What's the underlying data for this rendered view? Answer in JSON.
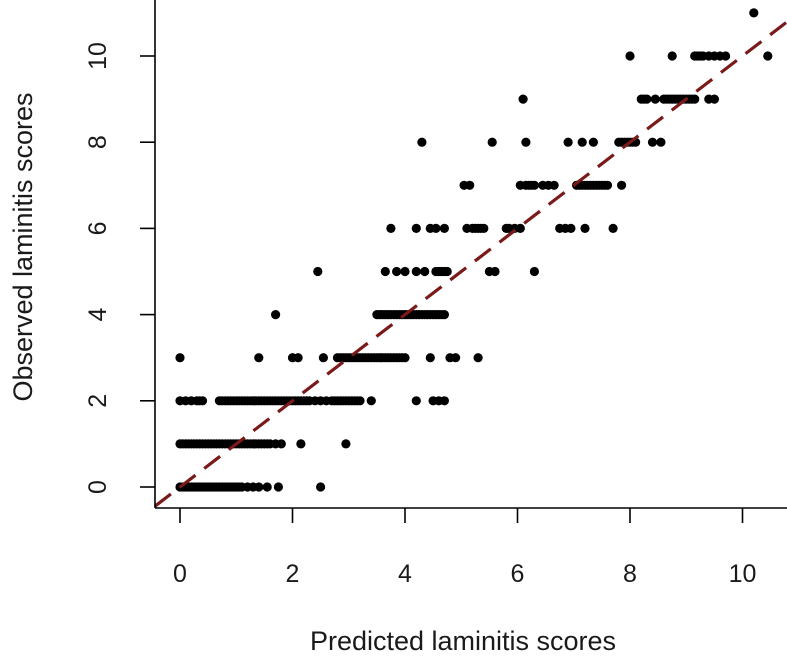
{
  "chart_data": {
    "type": "scatter",
    "title": "",
    "xlabel": "Predicted laminitis scores",
    "ylabel": "Observed laminitis scores",
    "xlim": [
      -0.4,
      10.8
    ],
    "ylim": [
      -0.5,
      11.2
    ],
    "x_ticks": [
      0,
      2,
      4,
      6,
      8,
      10
    ],
    "y_ticks": [
      0,
      2,
      4,
      6,
      8,
      10
    ],
    "x_tick_labels": [
      "0",
      "2",
      "4",
      "6",
      "8",
      "10"
    ],
    "y_tick_labels": [
      "0",
      "2",
      "4",
      "6",
      "8",
      "10"
    ],
    "grid": false,
    "legend": "none",
    "reference_line": {
      "kind": "identity",
      "style": "dashed",
      "color": "#7a1a1a"
    },
    "point_color": "#000000",
    "points": [
      {
        "y": 0,
        "x": [
          0.0,
          0.05,
          0.1,
          0.15,
          0.2,
          0.25,
          0.3,
          0.35,
          0.4,
          0.45,
          0.5,
          0.55,
          0.6,
          0.65,
          0.7,
          0.75,
          0.8,
          0.85,
          0.9,
          0.95,
          1.0,
          1.05,
          1.1,
          1.2,
          1.3,
          1.4,
          1.55,
          1.75,
          2.5
        ]
      },
      {
        "y": 1,
        "x": [
          0.0,
          0.05,
          0.1,
          0.15,
          0.2,
          0.25,
          0.3,
          0.35,
          0.4,
          0.45,
          0.5,
          0.55,
          0.6,
          0.65,
          0.7,
          0.75,
          0.8,
          0.85,
          0.9,
          0.95,
          1.0,
          1.05,
          1.1,
          1.15,
          1.2,
          1.25,
          1.3,
          1.35,
          1.4,
          1.45,
          1.5,
          1.55,
          1.6,
          1.7,
          1.8,
          2.15,
          2.95
        ]
      },
      {
        "y": 2,
        "x": [
          0.0,
          0.1,
          0.2,
          0.3,
          0.35,
          0.4,
          0.7,
          0.75,
          0.8,
          0.85,
          0.9,
          0.95,
          1.0,
          1.05,
          1.1,
          1.15,
          1.2,
          1.25,
          1.3,
          1.35,
          1.4,
          1.45,
          1.5,
          1.55,
          1.6,
          1.65,
          1.7,
          1.75,
          1.8,
          1.85,
          1.9,
          1.95,
          2.0,
          2.05,
          2.1,
          2.15,
          2.2,
          2.25,
          2.3,
          2.4,
          2.5,
          2.6,
          2.7,
          2.75,
          2.8,
          2.85,
          2.9,
          2.95,
          3.0,
          3.05,
          3.1,
          3.15,
          3.2,
          3.4,
          4.2,
          4.5,
          4.6,
          4.7
        ]
      },
      {
        "y": 3,
        "x": [
          0.0,
          1.4,
          2.0,
          2.1,
          2.55,
          2.8,
          2.85,
          2.9,
          2.95,
          3.0,
          3.05,
          3.1,
          3.15,
          3.2,
          3.25,
          3.3,
          3.35,
          3.4,
          3.45,
          3.5,
          3.55,
          3.6,
          3.65,
          3.7,
          3.75,
          3.8,
          3.85,
          3.9,
          3.95,
          4.0,
          4.45,
          4.8,
          4.9,
          5.3
        ]
      },
      {
        "y": 4,
        "x": [
          1.7,
          3.5,
          3.55,
          3.6,
          3.65,
          3.7,
          3.75,
          3.8,
          3.85,
          3.9,
          3.95,
          4.0,
          4.05,
          4.1,
          4.15,
          4.2,
          4.25,
          4.3,
          4.35,
          4.4,
          4.45,
          4.5,
          4.55,
          4.6,
          4.65,
          4.7
        ]
      },
      {
        "y": 5,
        "x": [
          2.45,
          3.65,
          3.85,
          4.0,
          4.2,
          4.35,
          4.55,
          4.6,
          4.65,
          4.7,
          4.75,
          5.5,
          5.6,
          6.3
        ]
      },
      {
        "y": 6,
        "x": [
          3.75,
          4.2,
          4.45,
          4.55,
          4.7,
          5.1,
          5.2,
          5.25,
          5.3,
          5.35,
          5.4,
          5.8,
          5.85,
          5.95,
          6.05,
          6.75,
          6.85,
          6.95,
          7.2,
          7.7
        ]
      },
      {
        "y": 7,
        "x": [
          5.05,
          5.15,
          6.05,
          6.15,
          6.2,
          6.25,
          6.3,
          6.45,
          6.55,
          6.65,
          7.05,
          7.1,
          7.15,
          7.2,
          7.25,
          7.3,
          7.35,
          7.4,
          7.45,
          7.5,
          7.55,
          7.6,
          7.85
        ]
      },
      {
        "y": 8,
        "x": [
          4.3,
          5.55,
          6.15,
          6.9,
          7.15,
          7.35,
          7.8,
          7.85,
          7.9,
          7.95,
          8.0,
          8.05,
          8.1,
          8.4,
          8.55
        ]
      },
      {
        "y": 9,
        "x": [
          6.1,
          8.2,
          8.25,
          8.3,
          8.45,
          8.6,
          8.65,
          8.7,
          8.75,
          8.8,
          8.85,
          8.9,
          8.95,
          9.0,
          9.05,
          9.1,
          9.15,
          9.4,
          9.5
        ]
      },
      {
        "y": 10,
        "x": [
          8.0,
          8.75,
          9.15,
          9.2,
          9.25,
          9.3,
          9.4,
          9.5,
          9.6,
          9.7,
          10.45
        ]
      },
      {
        "y": 11,
        "x": [
          10.2
        ]
      }
    ]
  }
}
